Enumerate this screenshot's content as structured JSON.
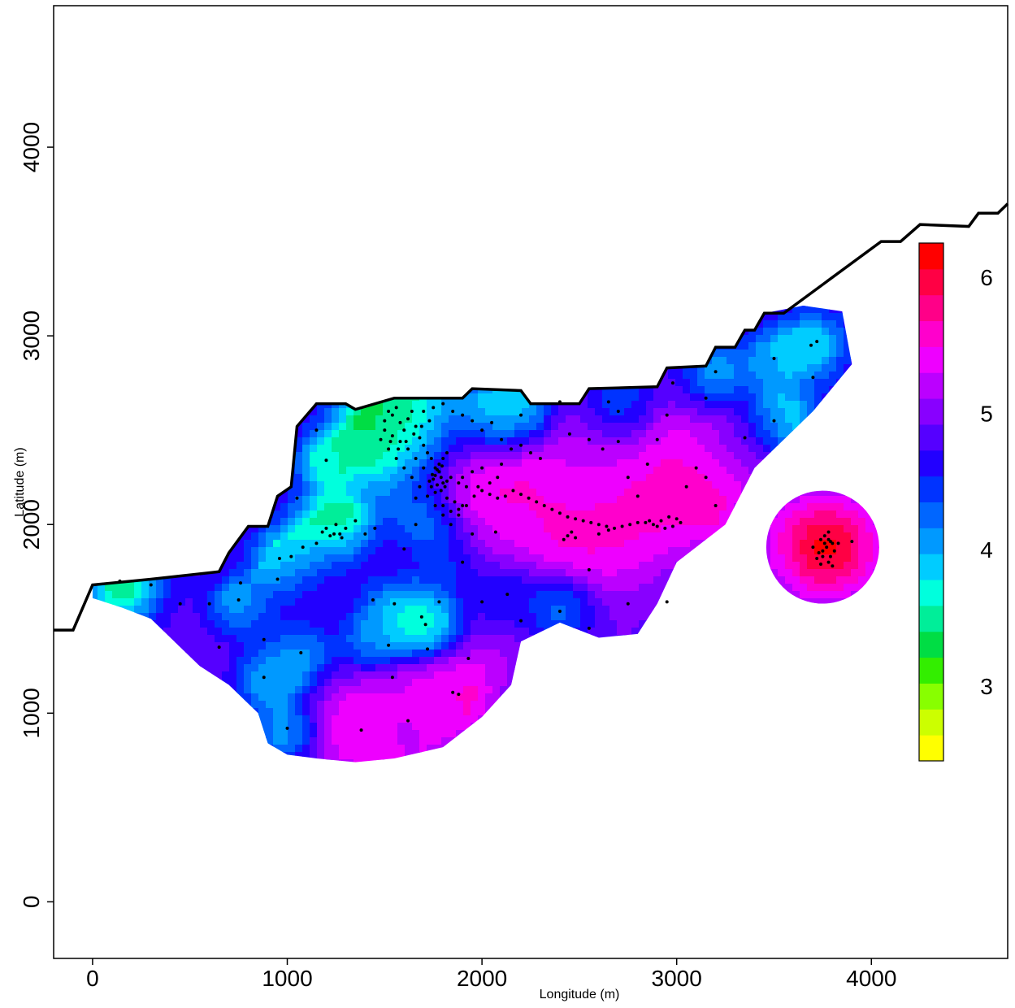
{
  "chart_data": {
    "type": "heatmap",
    "title": "",
    "xlabel": "Longitude (m)",
    "ylabel": "Latitude (m)",
    "xlim": [
      -200,
      4700
    ],
    "ylim": [
      -300,
      4750
    ],
    "xticks": [
      0,
      1000,
      2000,
      3000,
      4000
    ],
    "yticks": [
      0,
      1000,
      2000,
      3000,
      4000
    ],
    "grid": false,
    "legend": "right",
    "colorbar": {
      "ticks": [
        3,
        4,
        5,
        6
      ],
      "range": [
        2.45,
        6.25
      ],
      "colors": [
        "#ffff00",
        "#ccff00",
        "#88ff00",
        "#33ee00",
        "#00dd44",
        "#00ee99",
        "#00ffdd",
        "#00ccff",
        "#0099ff",
        "#0066ff",
        "#0033ff",
        "#2200ff",
        "#5500ff",
        "#8800ff",
        "#bb00ff",
        "#ee00ff",
        "#ff00cc",
        "#ff0088",
        "#ff0044",
        "#ff0000"
      ]
    },
    "coastline": [
      [
        -200,
        1440
      ],
      [
        -100,
        1440
      ],
      [
        0,
        1680
      ],
      [
        300,
        1710
      ],
      [
        650,
        1750
      ],
      [
        700,
        1850
      ],
      [
        800,
        1990
      ],
      [
        900,
        1990
      ],
      [
        950,
        2150
      ],
      [
        1020,
        2200
      ],
      [
        1050,
        2520
      ],
      [
        1150,
        2640
      ],
      [
        1300,
        2640
      ],
      [
        1350,
        2610
      ],
      [
        1550,
        2670
      ],
      [
        1900,
        2670
      ],
      [
        1950,
        2720
      ],
      [
        2200,
        2710
      ],
      [
        2250,
        2640
      ],
      [
        2500,
        2640
      ],
      [
        2550,
        2720
      ],
      [
        2900,
        2730
      ],
      [
        2950,
        2830
      ],
      [
        3150,
        2840
      ],
      [
        3200,
        2940
      ],
      [
        3300,
        2940
      ],
      [
        3350,
        3030
      ],
      [
        3400,
        3030
      ],
      [
        3450,
        3120
      ],
      [
        3550,
        3120
      ],
      [
        4050,
        3500
      ],
      [
        4150,
        3500
      ],
      [
        4250,
        3590
      ],
      [
        4500,
        3580
      ],
      [
        4550,
        3650
      ],
      [
        4650,
        3650
      ],
      [
        4700,
        3700
      ]
    ],
    "land_mask": [
      [
        0,
        1680
      ],
      [
        300,
        1710
      ],
      [
        650,
        1750
      ],
      [
        700,
        1850
      ],
      [
        800,
        1990
      ],
      [
        900,
        1990
      ],
      [
        950,
        2150
      ],
      [
        1020,
        2200
      ],
      [
        1050,
        2520
      ],
      [
        1150,
        2640
      ],
      [
        1300,
        2640
      ],
      [
        1350,
        2610
      ],
      [
        1550,
        2670
      ],
      [
        1900,
        2670
      ],
      [
        1950,
        2720
      ],
      [
        2200,
        2710
      ],
      [
        2250,
        2640
      ],
      [
        2500,
        2640
      ],
      [
        2550,
        2720
      ],
      [
        2900,
        2730
      ],
      [
        2950,
        2830
      ],
      [
        3150,
        2840
      ],
      [
        3200,
        2940
      ],
      [
        3300,
        2940
      ],
      [
        3350,
        3030
      ],
      [
        3400,
        3030
      ],
      [
        3450,
        3120
      ],
      [
        3650,
        3160
      ],
      [
        3850,
        3130
      ],
      [
        3900,
        2850
      ],
      [
        3700,
        2600
      ],
      [
        3400,
        2300
      ],
      [
        3250,
        2000
      ],
      [
        3000,
        1800
      ],
      [
        2900,
        1580
      ],
      [
        2800,
        1420
      ],
      [
        2600,
        1400
      ],
      [
        2400,
        1480
      ],
      [
        2200,
        1380
      ],
      [
        2150,
        1150
      ],
      [
        2000,
        980
      ],
      [
        1800,
        820
      ],
      [
        1550,
        760
      ],
      [
        1350,
        740
      ],
      [
        1150,
        760
      ],
      [
        1000,
        780
      ],
      [
        900,
        840
      ],
      [
        850,
        1000
      ],
      [
        700,
        1150
      ],
      [
        550,
        1250
      ],
      [
        450,
        1350
      ],
      [
        300,
        1500
      ],
      [
        150,
        1560
      ],
      [
        0,
        1610
      ]
    ],
    "island": {
      "center": [
        3750,
        1880
      ],
      "radius": 290
    },
    "hotspots": [
      {
        "x": 3770,
        "y": 1880,
        "value": 6.1,
        "r": 210
      },
      {
        "x": 1900,
        "y": 2290,
        "value": 5.8,
        "r": 230
      },
      {
        "x": 2200,
        "y": 2150,
        "value": 5.5,
        "r": 220
      },
      {
        "x": 2550,
        "y": 2070,
        "value": 5.6,
        "r": 260
      },
      {
        "x": 2850,
        "y": 2040,
        "value": 5.5,
        "r": 230
      },
      {
        "x": 3000,
        "y": 2200,
        "value": 5.7,
        "r": 230
      },
      {
        "x": 2550,
        "y": 2380,
        "value": 5.0,
        "r": 180
      },
      {
        "x": 2700,
        "y": 2570,
        "value": 4.8,
        "r": 170
      },
      {
        "x": 3300,
        "y": 2450,
        "value": 4.9,
        "r": 170
      },
      {
        "x": 1370,
        "y": 910,
        "value": 5.5,
        "r": 200
      },
      {
        "x": 1840,
        "y": 1110,
        "value": 5.6,
        "r": 190
      },
      {
        "x": 1600,
        "y": 970,
        "value": 5.1,
        "r": 170
      },
      {
        "x": 2050,
        "y": 1950,
        "value": 5.3,
        "r": 180
      },
      {
        "x": 2650,
        "y": 1450,
        "value": 4.9,
        "r": 200
      },
      {
        "x": 2150,
        "y": 1450,
        "value": 5.0,
        "r": 180
      },
      {
        "x": 580,
        "y": 1360,
        "value": 4.9,
        "r": 180
      },
      {
        "x": 1580,
        "y": 1860,
        "value": 5.0,
        "r": 170
      },
      {
        "x": 1200,
        "y": 1750,
        "value": 4.9,
        "r": 160
      },
      {
        "x": 1950,
        "y": 1760,
        "value": 4.8,
        "r": 160
      },
      {
        "x": 1000,
        "y": 1550,
        "value": 4.7,
        "r": 160
      },
      {
        "x": 3050,
        "y": 1700,
        "value": 4.7,
        "r": 170
      }
    ],
    "lowspots": [
      {
        "x": 1650,
        "y": 2450,
        "value": 3.2,
        "r": 200
      },
      {
        "x": 1500,
        "y": 2520,
        "value": 3.3,
        "r": 170
      },
      {
        "x": 1250,
        "y": 1980,
        "value": 3.0,
        "r": 140
      },
      {
        "x": 1000,
        "y": 1800,
        "value": 3.4,
        "r": 120
      },
      {
        "x": 150,
        "y": 1660,
        "value": 3.4,
        "r": 130
      },
      {
        "x": 1720,
        "y": 2000,
        "value": 3.2,
        "r": 120
      },
      {
        "x": 1720,
        "y": 1470,
        "value": 3.3,
        "r": 120
      },
      {
        "x": 2050,
        "y": 2550,
        "value": 3.3,
        "r": 130
      },
      {
        "x": 2200,
        "y": 2580,
        "value": 3.6,
        "r": 110
      },
      {
        "x": 1650,
        "y": 1520,
        "value": 3.5,
        "r": 100
      },
      {
        "x": 750,
        "y": 1560,
        "value": 3.7,
        "r": 100
      },
      {
        "x": 1200,
        "y": 2340,
        "value": 3.7,
        "r": 100
      },
      {
        "x": 2400,
        "y": 1540,
        "value": 3.7,
        "r": 110
      },
      {
        "x": 3550,
        "y": 2560,
        "value": 3.7,
        "r": 120
      },
      {
        "x": 2700,
        "y": 2620,
        "value": 3.8,
        "r": 100
      },
      {
        "x": 1550,
        "y": 1590,
        "value": 3.9,
        "r": 110
      },
      {
        "x": 1050,
        "y": 1300,
        "value": 3.9,
        "r": 110
      },
      {
        "x": 900,
        "y": 1180,
        "value": 3.9,
        "r": 110
      },
      {
        "x": 1000,
        "y": 900,
        "value": 3.9,
        "r": 110
      },
      {
        "x": 3700,
        "y": 2950,
        "value": 3.8,
        "r": 120
      },
      {
        "x": 3500,
        "y": 2880,
        "value": 4.0,
        "r": 110
      },
      {
        "x": 3200,
        "y": 2800,
        "value": 4.0,
        "r": 110
      },
      {
        "x": 1440,
        "y": 1380,
        "value": 4.0,
        "r": 110
      },
      {
        "x": 1850,
        "y": 1800,
        "value": 3.9,
        "r": 110
      },
      {
        "x": 2130,
        "y": 1630,
        "value": 4.0,
        "r": 110
      }
    ],
    "samples": [
      [
        140,
        1700
      ],
      [
        300,
        1680
      ],
      [
        450,
        1580
      ],
      [
        600,
        1580
      ],
      [
        750,
        1600
      ],
      [
        760,
        1690
      ],
      [
        650,
        1350
      ],
      [
        950,
        1710
      ],
      [
        960,
        1820
      ],
      [
        1020,
        1830
      ],
      [
        1080,
        1880
      ],
      [
        1150,
        1900
      ],
      [
        1240,
        1950
      ],
      [
        1250,
        2000
      ],
      [
        1280,
        1930
      ],
      [
        1300,
        1980
      ],
      [
        1200,
        1980
      ],
      [
        1180,
        1960
      ],
      [
        1220,
        1940
      ],
      [
        1270,
        1950
      ],
      [
        1350,
        2020
      ],
      [
        1400,
        1950
      ],
      [
        1450,
        1980
      ],
      [
        1200,
        2340
      ],
      [
        1050,
        2140
      ],
      [
        1150,
        2500
      ],
      [
        880,
        1390
      ],
      [
        880,
        1190
      ],
      [
        1000,
        920
      ],
      [
        1070,
        1320
      ],
      [
        1440,
        1600
      ],
      [
        1550,
        1580
      ],
      [
        1520,
        1360
      ],
      [
        1540,
        1190
      ],
      [
        1620,
        960
      ],
      [
        1690,
        1510
      ],
      [
        1710,
        1470
      ],
      [
        1720,
        1340
      ],
      [
        1850,
        1110
      ],
      [
        1880,
        1100
      ],
      [
        1380,
        910
      ],
      [
        1930,
        1290
      ],
      [
        2000,
        1590
      ],
      [
        2130,
        1630
      ],
      [
        2200,
        1490
      ],
      [
        2400,
        1540
      ],
      [
        2550,
        1450
      ],
      [
        2550,
        1760
      ],
      [
        2750,
        1580
      ],
      [
        2950,
        1590
      ],
      [
        1950,
        1950
      ],
      [
        2070,
        1960
      ],
      [
        1780,
        1590
      ],
      [
        1900,
        1800
      ],
      [
        1600,
        1870
      ],
      [
        1660,
        2140
      ],
      [
        1660,
        2000
      ],
      [
        1500,
        2550
      ],
      [
        1520,
        2600
      ],
      [
        1540,
        2580
      ],
      [
        1560,
        2620
      ],
      [
        1580,
        2540
      ],
      [
        1600,
        2500
      ],
      [
        1620,
        2560
      ],
      [
        1640,
        2600
      ],
      [
        1660,
        2520
      ],
      [
        1680,
        2460
      ],
      [
        1700,
        2420
      ],
      [
        1720,
        2380
      ],
      [
        1740,
        2350
      ],
      [
        1760,
        2300
      ],
      [
        1780,
        2280
      ],
      [
        1790,
        2250
      ],
      [
        1800,
        2220
      ],
      [
        1820,
        2230
      ],
      [
        1840,
        2250
      ],
      [
        1810,
        2200
      ],
      [
        1790,
        2180
      ],
      [
        1770,
        2210
      ],
      [
        1750,
        2240
      ],
      [
        1760,
        2260
      ],
      [
        1780,
        2320
      ],
      [
        1800,
        2350
      ],
      [
        1820,
        2380
      ],
      [
        1700,
        2300
      ],
      [
        1660,
        2350
      ],
      [
        1620,
        2400
      ],
      [
        1580,
        2440
      ],
      [
        1540,
        2470
      ],
      [
        1500,
        2500
      ],
      [
        1480,
        2450
      ],
      [
        1520,
        2400
      ],
      [
        1560,
        2350
      ],
      [
        1600,
        2300
      ],
      [
        1640,
        2250
      ],
      [
        1680,
        2200
      ],
      [
        1720,
        2150
      ],
      [
        1760,
        2100
      ],
      [
        1800,
        2050
      ],
      [
        1840,
        2000
      ],
      [
        1880,
        2050
      ],
      [
        1920,
        2100
      ],
      [
        1960,
        2150
      ],
      [
        2000,
        2180
      ],
      [
        2040,
        2160
      ],
      [
        2080,
        2140
      ],
      [
        2120,
        2150
      ],
      [
        2160,
        2180
      ],
      [
        2200,
        2160
      ],
      [
        2240,
        2140
      ],
      [
        2280,
        2120
      ],
      [
        2320,
        2100
      ],
      [
        2360,
        2080
      ],
      [
        2400,
        2060
      ],
      [
        2440,
        2040
      ],
      [
        2480,
        2030
      ],
      [
        2520,
        2020
      ],
      [
        2560,
        2010
      ],
      [
        2600,
        2000
      ],
      [
        2640,
        1990
      ],
      [
        2680,
        1980
      ],
      [
        2720,
        1990
      ],
      [
        2760,
        2000
      ],
      [
        2800,
        2010
      ],
      [
        2840,
        2010
      ],
      [
        2880,
        2000
      ],
      [
        2920,
        2020
      ],
      [
        2960,
        2040
      ],
      [
        3000,
        2030
      ],
      [
        3020,
        2010
      ],
      [
        2980,
        1990
      ],
      [
        2940,
        1980
      ],
      [
        2900,
        1990
      ],
      [
        2860,
        2020
      ],
      [
        2440,
        1940
      ],
      [
        2460,
        1960
      ],
      [
        2420,
        1920
      ],
      [
        2480,
        1930
      ],
      [
        2600,
        1950
      ],
      [
        2650,
        1970
      ],
      [
        2050,
        2540
      ],
      [
        2200,
        2580
      ],
      [
        2400,
        2650
      ],
      [
        2450,
        2480
      ],
      [
        2550,
        2450
      ],
      [
        2620,
        2400
      ],
      [
        2700,
        2440
      ],
      [
        2650,
        2650
      ],
      [
        2700,
        2600
      ],
      [
        2750,
        2250
      ],
      [
        2800,
        2150
      ],
      [
        2850,
        2320
      ],
      [
        2900,
        2450
      ],
      [
        2950,
        2580
      ],
      [
        2980,
        2750
      ],
      [
        3150,
        2670
      ],
      [
        3200,
        2810
      ],
      [
        3350,
        2460
      ],
      [
        3500,
        2550
      ],
      [
        3500,
        2880
      ],
      [
        3690,
        2950
      ],
      [
        3720,
        2970
      ],
      [
        3700,
        2780
      ],
      [
        3100,
        2300
      ],
      [
        3050,
        2200
      ],
      [
        3150,
        2250
      ],
      [
        3200,
        2100
      ],
      [
        1900,
        2580
      ],
      [
        1950,
        2550
      ],
      [
        1850,
        2600
      ],
      [
        2000,
        2500
      ],
      [
        2100,
        2450
      ],
      [
        2150,
        2400
      ],
      [
        2200,
        2420
      ],
      [
        2250,
        2380
      ],
      [
        2300,
        2350
      ],
      [
        2100,
        2320
      ],
      [
        2000,
        2300
      ],
      [
        1950,
        2280
      ],
      [
        1900,
        2250
      ],
      [
        1880,
        2220
      ],
      [
        1920,
        2200
      ],
      [
        1980,
        2200
      ],
      [
        2040,
        2220
      ],
      [
        2080,
        2250
      ],
      [
        1700,
        2600
      ],
      [
        1750,
        2620
      ],
      [
        1800,
        2640
      ],
      [
        1730,
        2550
      ],
      [
        1690,
        2520
      ],
      [
        1650,
        2480
      ],
      [
        1610,
        2440
      ],
      [
        1570,
        2400
      ],
      [
        1530,
        2440
      ],
      [
        1820,
        2140
      ],
      [
        1860,
        2120
      ],
      [
        1900,
        2100
      ],
      [
        1880,
        2080
      ],
      [
        1840,
        2070
      ],
      [
        1800,
        2100
      ],
      [
        1760,
        2170
      ],
      [
        1740,
        2200
      ],
      [
        1730,
        2230
      ],
      [
        1745,
        2265
      ],
      [
        1770,
        2290
      ],
      [
        1795,
        2310
      ],
      [
        3740,
        1920
      ],
      [
        3760,
        1940
      ],
      [
        3780,
        1920
      ],
      [
        3800,
        1900
      ],
      [
        3770,
        1880
      ],
      [
        3750,
        1860
      ],
      [
        3730,
        1850
      ],
      [
        3720,
        1820
      ],
      [
        3740,
        1790
      ],
      [
        3780,
        1800
      ],
      [
        3800,
        1780
      ],
      [
        3790,
        1830
      ],
      [
        3810,
        1860
      ],
      [
        3830,
        1900
      ],
      [
        3780,
        1960
      ],
      [
        3900,
        1910
      ],
      [
        3700,
        1880
      ],
      [
        3760,
        1900
      ],
      [
        3790,
        1910
      ],
      [
        3750,
        1830
      ]
    ]
  }
}
